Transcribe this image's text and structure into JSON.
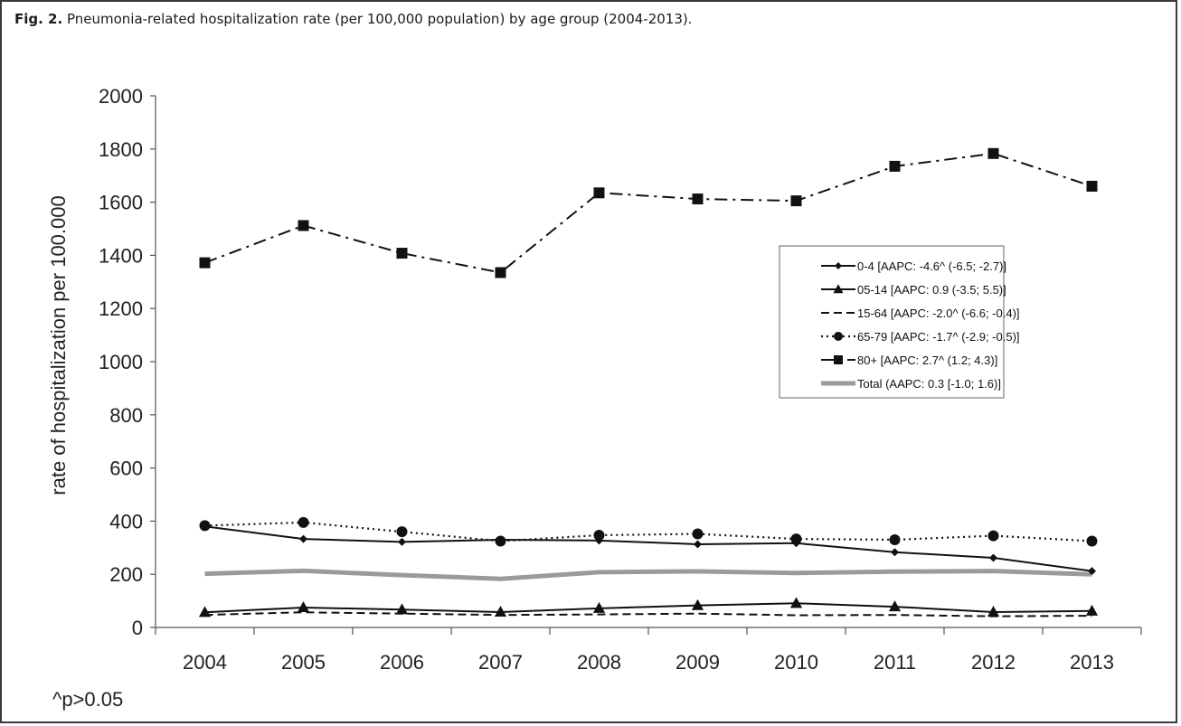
{
  "caption": {
    "label": "Fig. 2.",
    "text": "Pneumonia-related hospitalization rate (per 100,000 population) by age group (2004-2013)."
  },
  "footnote": "^p>0.05",
  "chart_data": {
    "type": "line",
    "title": "",
    "xlabel": "",
    "ylabel": "rate of hospitalization per 100.000",
    "ylim": [
      0,
      2000
    ],
    "yticks": [
      0,
      200,
      400,
      600,
      800,
      1000,
      1200,
      1400,
      1600,
      1800,
      2000
    ],
    "x": [
      "2004",
      "2005",
      "2006",
      "2007",
      "2008",
      "2009",
      "2010",
      "2011",
      "2012",
      "2013"
    ],
    "grid": false,
    "legend_position": "right",
    "series": [
      {
        "name": "0-4 [AAPC: -4.6^ (-6.5; -2.7)]",
        "values": [
          380,
          333,
          322,
          330,
          327,
          313,
          317,
          283,
          262,
          212
        ],
        "line_style": "solid",
        "marker": "diamond",
        "color": "#111111"
      },
      {
        "name": "05-14 [AAPC: 0.9 (-3.5; 5.5)]",
        "values": [
          57,
          75,
          67,
          58,
          72,
          83,
          91,
          78,
          58,
          62
        ],
        "line_style": "solid",
        "marker": "triangle",
        "color": "#111111"
      },
      {
        "name": "15-64 [AAPC: -2.0^ (-6.6; -0.4)]",
        "values": [
          47,
          57,
          52,
          47,
          49,
          52,
          46,
          47,
          42,
          44
        ],
        "line_style": "dashed",
        "marker": "none",
        "color": "#111111"
      },
      {
        "name": "65-79 [AAPC: -1.7^ (-2.9; -0.5)]",
        "values": [
          383,
          395,
          360,
          325,
          347,
          352,
          333,
          330,
          345,
          325
        ],
        "line_style": "dotted",
        "marker": "circle",
        "color": "#111111"
      },
      {
        "name": "80+ [AAPC: 2.7^ (1.2; 4.3)]",
        "values": [
          1372,
          1512,
          1408,
          1335,
          1635,
          1612,
          1605,
          1735,
          1783,
          1660
        ],
        "line_style": "dashdot",
        "marker": "square",
        "color": "#111111"
      },
      {
        "name": "Total (AAPC: 0.3 [-1.0; 1.6)]",
        "values": [
          202,
          213,
          197,
          183,
          208,
          211,
          205,
          210,
          212,
          200
        ],
        "line_style": "thick",
        "marker": "none",
        "color": "#9a9a9a"
      }
    ]
  }
}
